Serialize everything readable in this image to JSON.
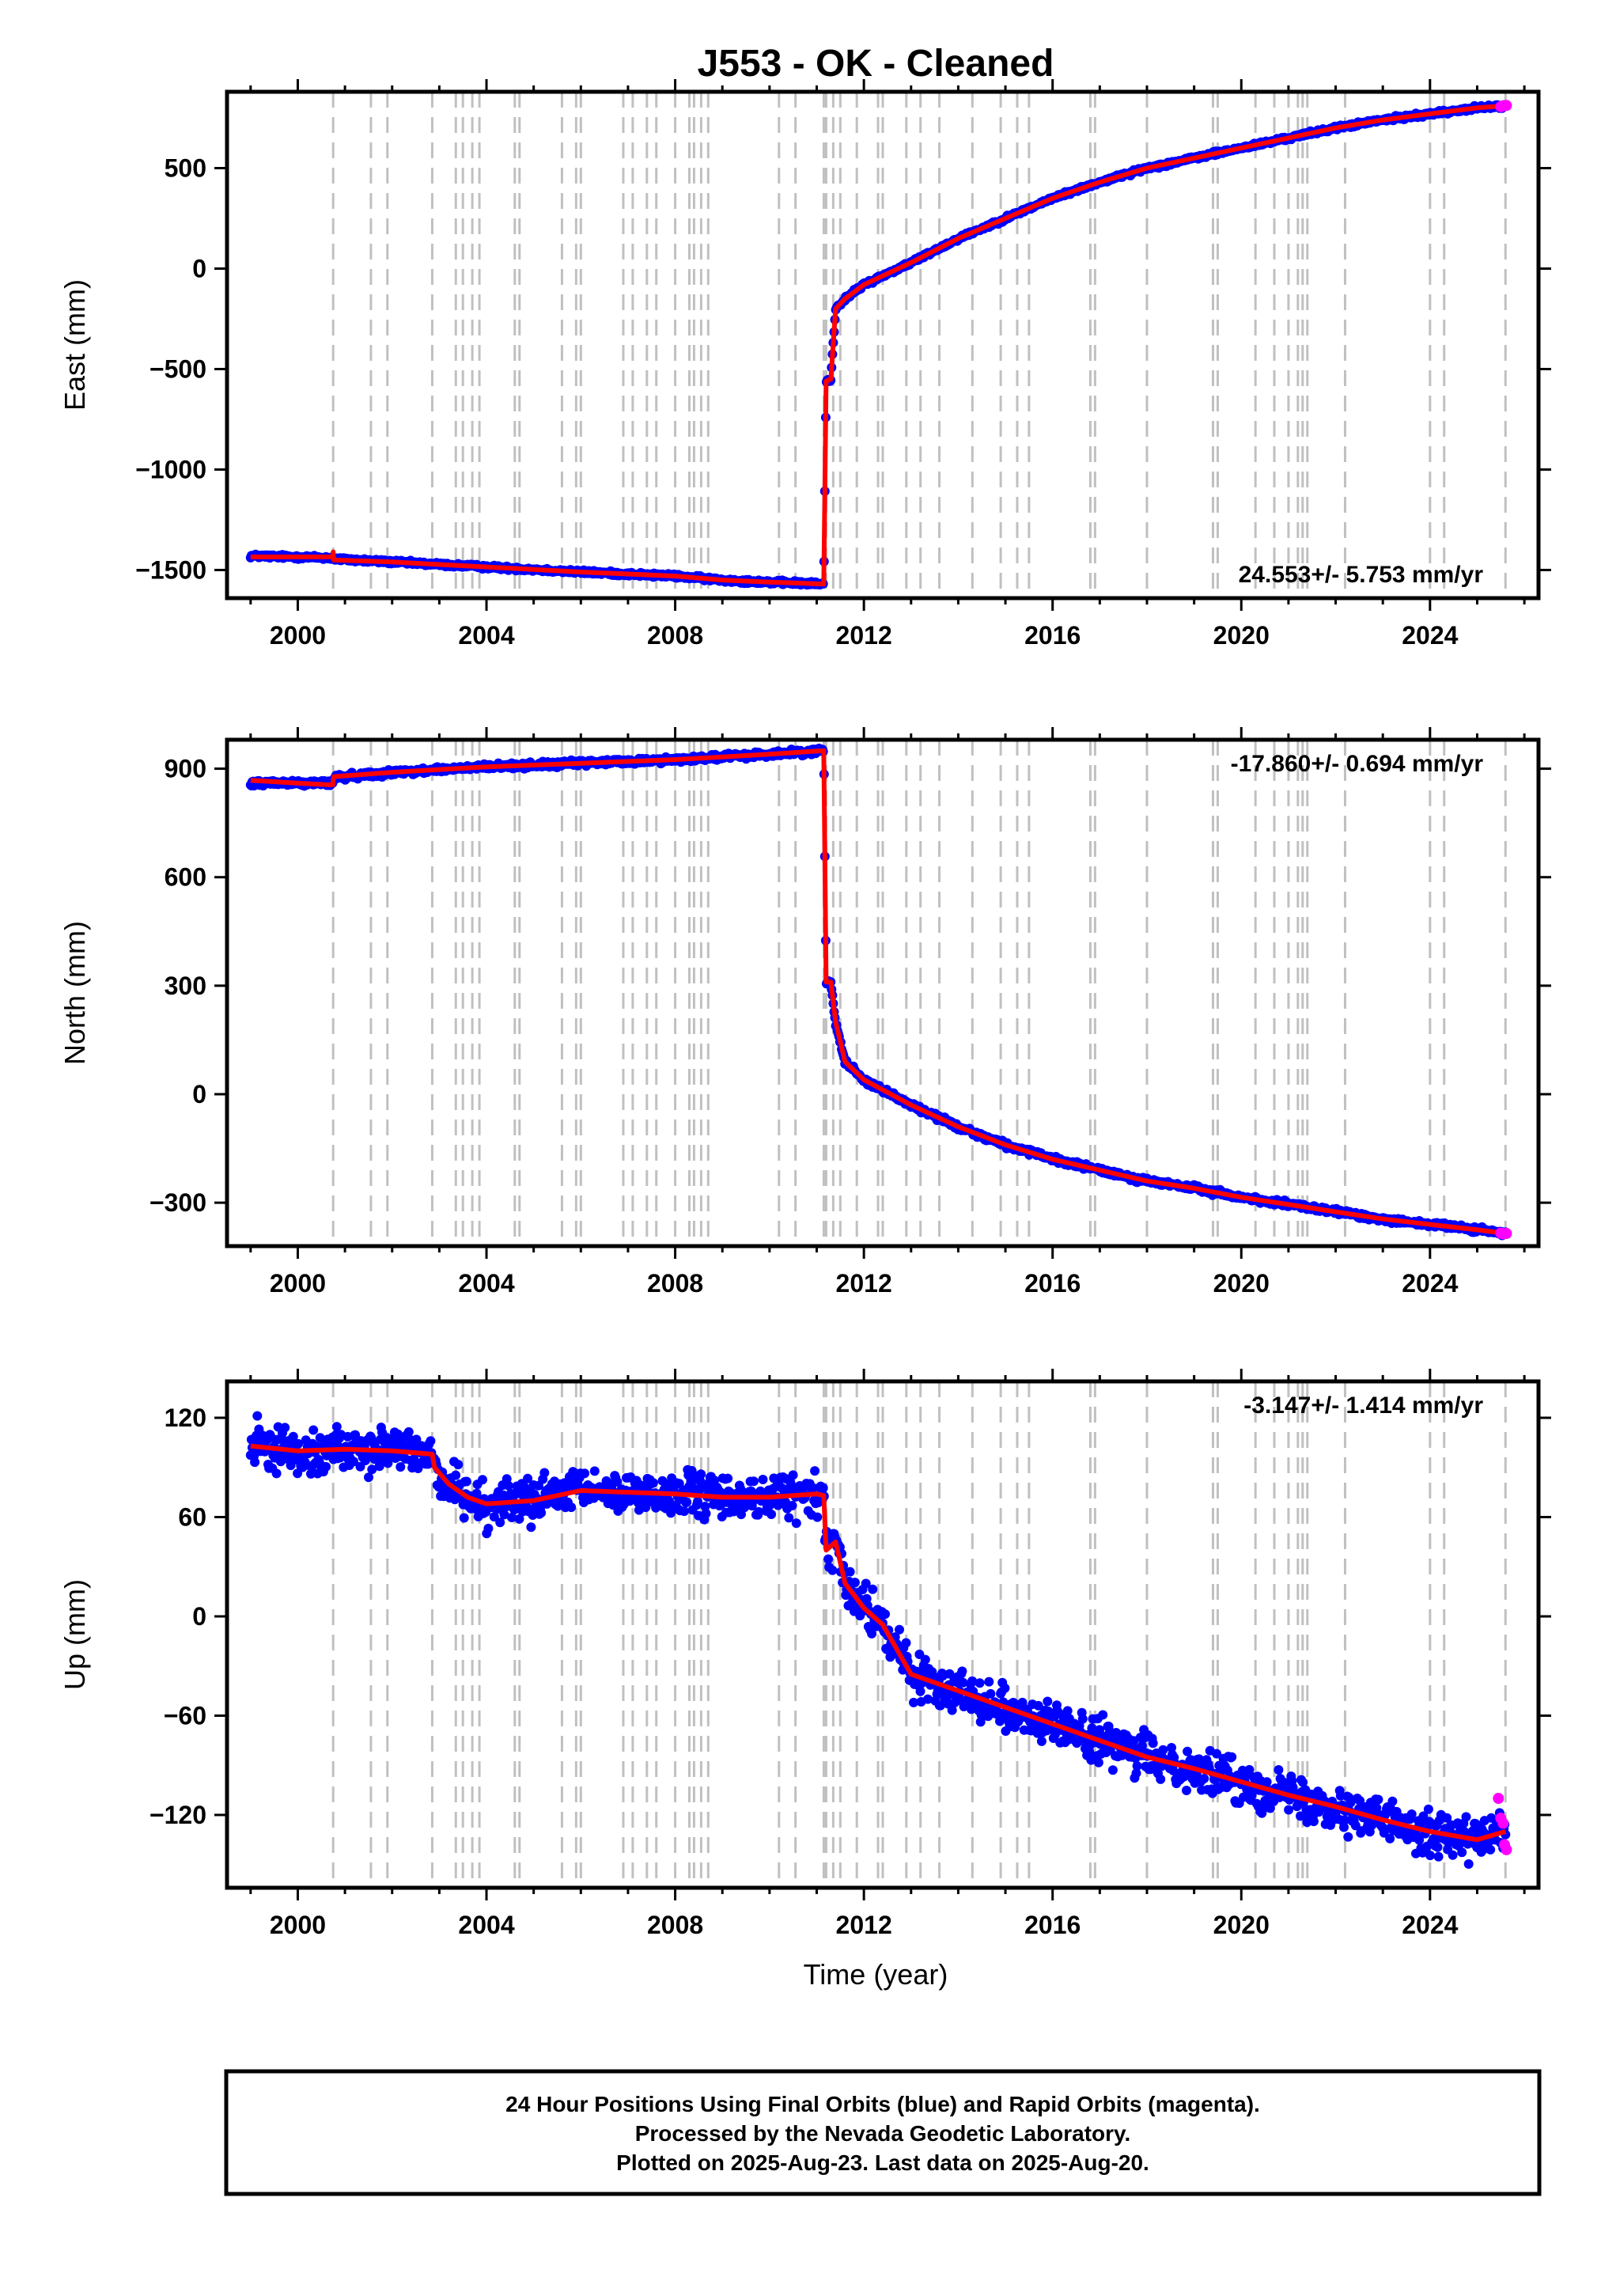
{
  "figure": {
    "title": "J553  - OK - Cleaned",
    "x_axis_label": "Time (year)"
  },
  "colors": {
    "final_orbits": "#0000ff",
    "rapid_orbits": "#ff00ff",
    "model": "#ff0000",
    "event_lines": "#c0c0c0",
    "frame": "#000000"
  },
  "event_lines_years": [
    2000.75,
    2001.55,
    2001.9,
    2002.85,
    2003.35,
    2003.5,
    2003.7,
    2003.85,
    2004.6,
    2004.7,
    2005.6,
    2005.9,
    2006.0,
    2006.9,
    2007.1,
    2007.4,
    2007.6,
    2008.0,
    2008.3,
    2008.4,
    2008.55,
    2008.7,
    2010.2,
    2010.55,
    2011.15,
    2011.2,
    2011.35,
    2011.5,
    2011.85,
    2012.3,
    2012.4,
    2012.9,
    2013.2,
    2013.6,
    2014.3,
    2014.9,
    2015.25,
    2015.5,
    2016.8,
    2016.9,
    2018.0,
    2019.4,
    2019.5,
    2020.3,
    2020.7,
    2021.0,
    2021.2,
    2021.3,
    2021.4,
    2022.2,
    2024.0,
    2024.3,
    2025.6
  ],
  "footer": {
    "line1": "24 Hour Positions Using Final Orbits (blue) and Rapid Orbits (magenta).",
    "line2": "Processed by the Nevada Geodetic Laboratory.",
    "line3": "Plotted on 2025-Aug-23. Last data on 2025-Aug-20."
  },
  "chart_data": [
    {
      "type": "scatter",
      "component": "east",
      "title": "J553  - OK - Cleaned",
      "xlabel": "",
      "ylabel": "East (mm)",
      "xlim": [
        1998.5,
        2026.3
      ],
      "ylim": [
        -1640,
        880
      ],
      "xticks": [
        2000,
        2004,
        2008,
        2012,
        2016,
        2020,
        2024
      ],
      "yticks": [
        -1500,
        -1000,
        -500,
        0,
        500
      ],
      "ytick_labels": [
        "−1500",
        "−1000",
        "−500",
        "0",
        "500"
      ],
      "rate_label": "24.553+/- 5.753 mm/yr",
      "rate_position": "bottom-right",
      "noise": 6,
      "grid": false,
      "series": [
        {
          "role": "final",
          "color": "#0000ff",
          "x": [
            1999.0,
            2000.0,
            2000.74,
            2000.76,
            2002.0,
            2004.0,
            2006.0,
            2008.0,
            2009.0,
            2010.0,
            2011.15,
            2011.2,
            2011.3,
            2011.4,
            2011.6,
            2012.0,
            2013.0,
            2014.0,
            2015.0,
            2016.0,
            2017.0,
            2018.0,
            2019.0,
            2020.0,
            2021.0,
            2022.0,
            2023.0,
            2024.0,
            2025.0,
            2025.6
          ],
          "y": [
            -1430,
            -1435,
            -1440,
            -1445,
            -1460,
            -1485,
            -1510,
            -1530,
            -1550,
            -1560,
            -1570,
            -560,
            -550,
            -200,
            -150,
            -80,
            30,
            150,
            250,
            350,
            430,
            500,
            550,
            600,
            650,
            700,
            740,
            770,
            800,
            810
          ]
        },
        {
          "role": "model",
          "color": "#ff0000",
          "x": [
            1999.0,
            2000.74,
            2000.75,
            2000.76,
            2002.0,
            2004.0,
            2006.0,
            2008.0,
            2009.0,
            2010.0,
            2011.15,
            2011.2,
            2011.3,
            2011.4,
            2011.6,
            2012.0,
            2013.0,
            2014.0,
            2015.0,
            2016.0,
            2017.0,
            2018.0,
            2019.0,
            2020.0,
            2021.0,
            2022.0,
            2023.0,
            2024.0,
            2025.0,
            2025.6
          ],
          "y": [
            -1435,
            -1435,
            -1410,
            -1450,
            -1460,
            -1485,
            -1510,
            -1530,
            -1550,
            -1560,
            -1570,
            -560,
            -550,
            -200,
            -150,
            -80,
            30,
            150,
            250,
            350,
            430,
            500,
            550,
            600,
            650,
            700,
            740,
            770,
            800,
            810
          ]
        },
        {
          "role": "rapid",
          "color": "#ff00ff",
          "x": [
            2025.5,
            2025.55,
            2025.62
          ],
          "y": [
            806,
            810,
            812
          ]
        }
      ]
    },
    {
      "type": "scatter",
      "component": "north",
      "xlabel": "",
      "ylabel": "North (mm)",
      "xlim": [
        1998.5,
        2026.3
      ],
      "ylim": [
        -420,
        980
      ],
      "xticks": [
        2000,
        2004,
        2008,
        2012,
        2016,
        2020,
        2024
      ],
      "yticks": [
        -300,
        0,
        300,
        600,
        900
      ],
      "ytick_labels": [
        "−300",
        "0",
        "300",
        "600",
        "900"
      ],
      "rate_label": "-17.860+/- 0.694 mm/yr",
      "rate_position": "top-right",
      "noise": 5,
      "grid": false,
      "series": [
        {
          "role": "final",
          "color": "#0000ff",
          "x": [
            1999.0,
            2000.0,
            2000.74,
            2000.76,
            2002.0,
            2004.0,
            2006.0,
            2008.0,
            2010.0,
            2011.15,
            2011.2,
            2011.3,
            2011.4,
            2011.6,
            2012.0,
            2013.0,
            2014.0,
            2015.0,
            2016.0,
            2017.0,
            2018.0,
            2019.0,
            2020.0,
            2021.0,
            2022.0,
            2023.0,
            2024.0,
            2025.0,
            2025.6
          ],
          "y": [
            860,
            860,
            860,
            875,
            890,
            905,
            915,
            925,
            940,
            950,
            310,
            310,
            200,
            90,
            40,
            -30,
            -90,
            -140,
            -180,
            -210,
            -240,
            -260,
            -285,
            -305,
            -325,
            -345,
            -360,
            -375,
            -385
          ]
        },
        {
          "role": "model",
          "color": "#ff0000",
          "x": [
            1999.0,
            2000.0,
            2000.74,
            2000.76,
            2002.0,
            2004.0,
            2006.0,
            2008.0,
            2010.0,
            2011.15,
            2011.2,
            2011.3,
            2011.4,
            2011.6,
            2012.0,
            2013.0,
            2014.0,
            2015.0,
            2016.0,
            2017.0,
            2018.0,
            2019.0,
            2020.0,
            2021.0,
            2022.0,
            2023.0,
            2024.0,
            2025.0,
            2025.6
          ],
          "y": [
            868,
            860,
            855,
            878,
            890,
            905,
            915,
            925,
            940,
            950,
            310,
            310,
            200,
            90,
            40,
            -30,
            -90,
            -140,
            -180,
            -210,
            -240,
            -260,
            -285,
            -305,
            -325,
            -345,
            -360,
            -375,
            -385
          ]
        },
        {
          "role": "rapid",
          "color": "#ff00ff",
          "x": [
            2025.5,
            2025.55,
            2025.62
          ],
          "y": [
            -384,
            -386,
            -385
          ]
        }
      ]
    },
    {
      "type": "scatter",
      "component": "up",
      "xlabel": "Time (year)",
      "ylabel": "Up (mm)",
      "xlim": [
        1998.5,
        2026.3
      ],
      "ylim": [
        -164,
        142
      ],
      "xticks": [
        2000,
        2004,
        2008,
        2012,
        2016,
        2020,
        2024
      ],
      "yticks": [
        -120,
        -60,
        0,
        60,
        120
      ],
      "ytick_labels": [
        "−120",
        "−60",
        "0",
        "60",
        "120"
      ],
      "rate_label": "-3.147+/- 1.414 mm/yr",
      "rate_position": "top-right",
      "noise": 8,
      "grid": false,
      "series": [
        {
          "role": "final",
          "color": "#0000ff",
          "x": [
            1999.0,
            2000.0,
            2001.0,
            2002.0,
            2002.85,
            2002.9,
            2003.2,
            2003.6,
            2004.0,
            2005.0,
            2006.0,
            2007.0,
            2008.0,
            2009.0,
            2010.0,
            2011.0,
            2011.15,
            2011.2,
            2011.4,
            2011.6,
            2012.0,
            2012.4,
            2012.8,
            2013.0,
            2014.0,
            2015.0,
            2016.0,
            2017.0,
            2018.0,
            2019.0,
            2020.0,
            2021.0,
            2022.0,
            2023.0,
            2024.0,
            2025.0,
            2025.6
          ],
          "y": [
            103,
            100,
            101,
            100,
            98,
            90,
            80,
            72,
            68,
            70,
            76,
            75,
            74,
            72,
            72,
            74,
            73,
            40,
            45,
            20,
            5,
            -5,
            -25,
            -35,
            -45,
            -55,
            -65,
            -75,
            -85,
            -92,
            -100,
            -108,
            -115,
            -123,
            -130,
            -135,
            -130
          ]
        },
        {
          "role": "model",
          "color": "#ff0000",
          "x": [
            1999.0,
            2000.0,
            2001.0,
            2002.0,
            2002.85,
            2002.9,
            2003.2,
            2003.6,
            2004.0,
            2005.0,
            2006.0,
            2007.0,
            2008.0,
            2009.0,
            2010.0,
            2011.0,
            2011.15,
            2011.2,
            2011.4,
            2011.6,
            2012.0,
            2012.4,
            2012.8,
            2013.0,
            2014.0,
            2015.0,
            2016.0,
            2017.0,
            2018.0,
            2019.0,
            2020.0,
            2021.0,
            2022.0,
            2023.0,
            2024.0,
            2025.0,
            2025.6
          ],
          "y": [
            103,
            100,
            101,
            100,
            98,
            90,
            80,
            72,
            68,
            70,
            76,
            75,
            74,
            72,
            72,
            74,
            73,
            40,
            45,
            20,
            5,
            -5,
            -25,
            -35,
            -45,
            -55,
            -65,
            -75,
            -85,
            -92,
            -100,
            -108,
            -115,
            -123,
            -130,
            -135,
            -130
          ]
        },
        {
          "role": "rapid",
          "color": "#ff00ff",
          "x": [
            2025.45,
            2025.5,
            2025.55,
            2025.58,
            2025.62
          ],
          "y": [
            -110,
            -122,
            -125,
            -138,
            -141
          ]
        }
      ]
    }
  ]
}
